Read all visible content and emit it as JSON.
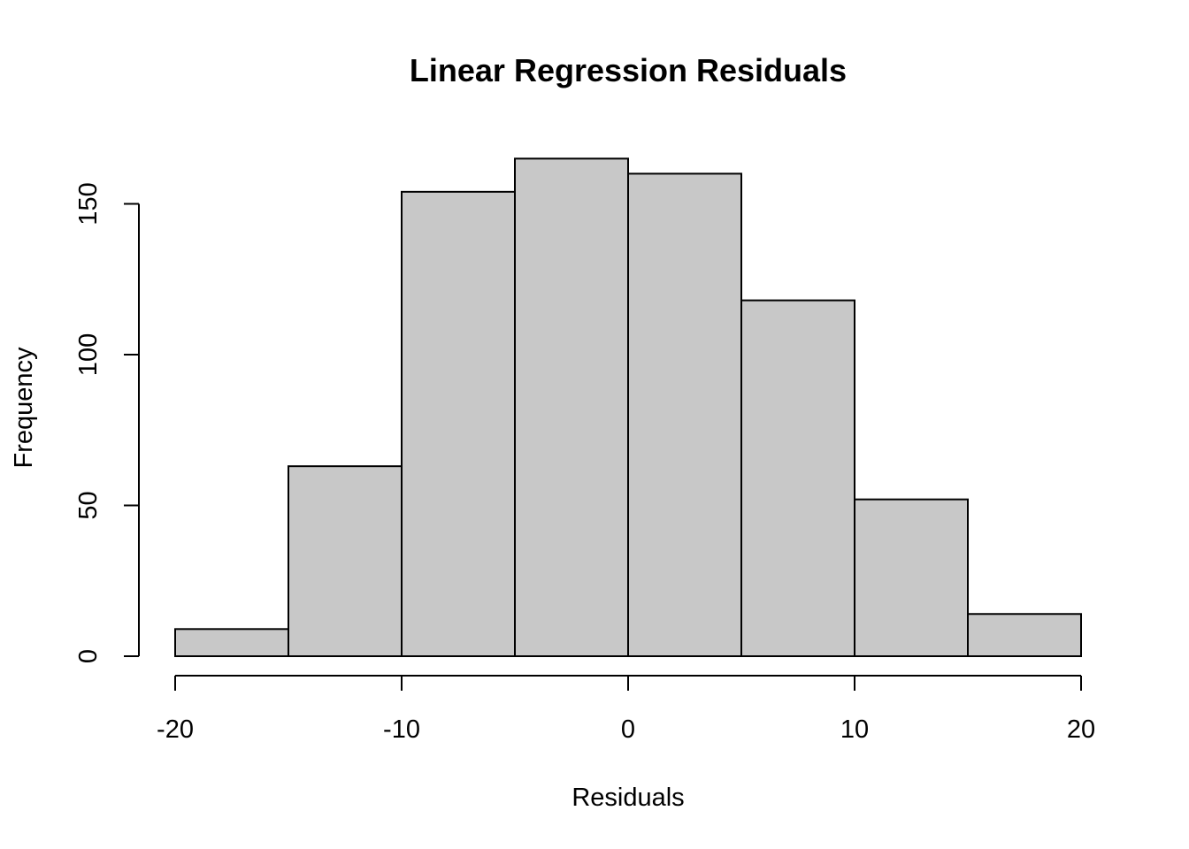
{
  "chart_data": {
    "type": "bar",
    "title": "Linear Regression Residuals",
    "xlabel": "Residuals",
    "ylabel": "Frequency",
    "bins": [
      {
        "from": -20,
        "to": -15,
        "count": 9
      },
      {
        "from": -15,
        "to": -10,
        "count": 63
      },
      {
        "from": -10,
        "to": -5,
        "count": 154
      },
      {
        "from": -5,
        "to": 0,
        "count": 165
      },
      {
        "from": 0,
        "to": 5,
        "count": 160
      },
      {
        "from": 5,
        "to": 10,
        "count": 118
      },
      {
        "from": 10,
        "to": 15,
        "count": 52
      },
      {
        "from": 15,
        "to": 20,
        "count": 14
      }
    ],
    "xlim": [
      -20,
      20
    ],
    "ylim": [
      0,
      150
    ],
    "x_ticks": [
      -20,
      -10,
      0,
      10,
      20
    ],
    "x_tick_labels": [
      "-20",
      "-10",
      "0",
      "10",
      "20"
    ],
    "y_ticks": [
      0,
      50,
      100,
      150
    ],
    "y_tick_labels": [
      "0",
      "50",
      "100",
      "150"
    ],
    "bar_color": "#c8c8c8",
    "grid": false,
    "legend": "none"
  }
}
